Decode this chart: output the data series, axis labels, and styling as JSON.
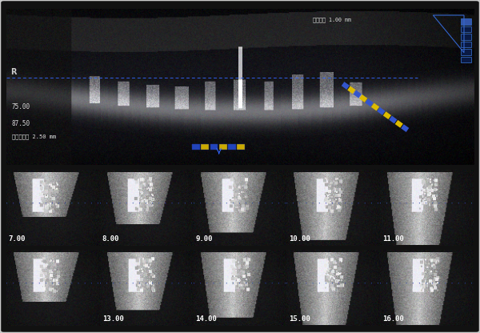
{
  "background_color": "#1a1a1a",
  "outer_bg": "#111111",
  "border_color": "#cccccc",
  "top_panel": {
    "bg_color": "#000000",
    "dotted_line_color": "#3366ff",
    "text_75": "75.00",
    "text_8750": "87.50",
    "text_measure": "刷度距离： 2.50 mm",
    "text_top_right": "刷度距离 1.00 mm",
    "ruler_color": "#ffcc00",
    "ruler_blue": "#3366ff"
  },
  "bottom_grid": {
    "rows": 2,
    "cols": 5,
    "labels_row1": [
      "7.00",
      "8.00",
      "9.00",
      "10.00",
      "11.00"
    ],
    "labels_row2": [
      "",
      "13.00",
      "14.00",
      "15.00",
      "16.00"
    ],
    "highlighted_cell": [
      1,
      0
    ],
    "highlight_color": "#3366ff",
    "cell_bg": "#1a1a1a",
    "label_color": "#ffffff",
    "grid_line_color": "#444444"
  },
  "label_fontsize": 7,
  "text_color": "#ffffff"
}
